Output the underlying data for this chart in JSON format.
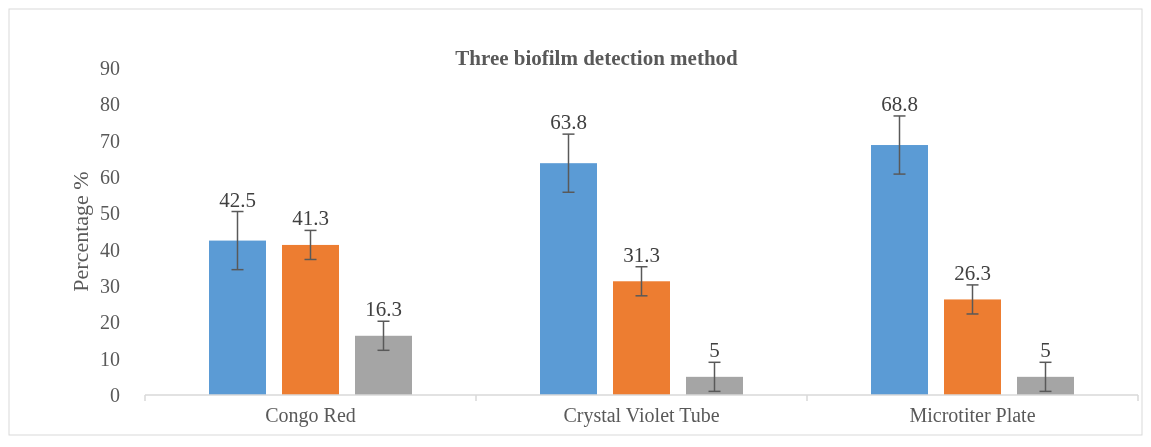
{
  "chart_data": {
    "type": "bar",
    "title": "Three biofilm detection method",
    "ylabel": "Percentage %",
    "categories": [
      "Congo Red",
      "Crystal Violet Tube",
      "Microtiter Plate"
    ],
    "series": [
      {
        "color": "#5b9bd5",
        "values": [
          42.5,
          63.8,
          68.8
        ],
        "errors": [
          8,
          8,
          8
        ]
      },
      {
        "color": "#ed7d31",
        "values": [
          41.3,
          31.3,
          26.3
        ],
        "errors": [
          4,
          4,
          4
        ]
      },
      {
        "color": "#a5a5a5",
        "values": [
          16.3,
          5,
          5
        ],
        "errors": [
          4,
          4,
          4
        ]
      }
    ],
    "ylim": [
      0,
      90
    ],
    "yticks": [
      0,
      10,
      20,
      30,
      40,
      50,
      60,
      70,
      80,
      90
    ],
    "grid": false,
    "data_labels": true
  }
}
